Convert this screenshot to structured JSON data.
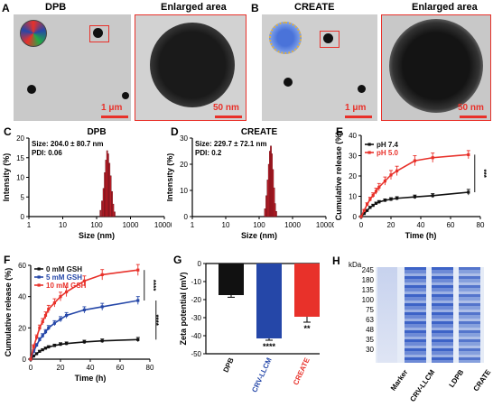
{
  "panels": {
    "A": {
      "letter": "A",
      "left_title": "DPB",
      "right_title": "Enlarged area",
      "scale_left": "1 μm",
      "scale_right": "50 nm"
    },
    "B": {
      "letter": "B",
      "left_title": "CREATE",
      "right_title": "Enlarged area",
      "scale_left": "1 μm",
      "scale_right": "50 nm"
    },
    "H": {
      "letter": "H"
    }
  },
  "colors": {
    "red": "#e8312a",
    "blue": "#2547a8",
    "black": "#111111",
    "gel_blue": "#3d63c7"
  },
  "chart_data": [
    {
      "id": "C",
      "type": "bar",
      "letter": "C",
      "title": "DPB",
      "xlabel": "Size (nm)",
      "ylabel": "Intensity (%)",
      "xscale": "log",
      "xlim": [
        1,
        10000
      ],
      "ylim": [
        0,
        25
      ],
      "xticks": [
        "1",
        "10",
        "100",
        "1000",
        "10000"
      ],
      "yticks": [
        "0",
        "5",
        "10",
        "15",
        "20"
      ],
      "annotations": [
        "Size: 204.0 ± 80.7 nm",
        "PDI: 0.06"
      ],
      "x": [
        130,
        145,
        160,
        175,
        190,
        205,
        220,
        240,
        260,
        285,
        310,
        340
      ],
      "values": [
        2,
        5,
        9,
        14,
        18,
        21,
        20,
        17,
        13,
        8,
        4,
        1.5
      ]
    },
    {
      "id": "D",
      "type": "bar",
      "letter": "D",
      "title": "CREATE",
      "xlabel": "Size (nm)",
      "ylabel": "Intensity (%)",
      "xscale": "log",
      "xlim": [
        1,
        10000
      ],
      "ylim": [
        0,
        30
      ],
      "xticks": [
        "1",
        "10",
        "100",
        "1000",
        "10000"
      ],
      "yticks": [
        "0",
        "10",
        "20",
        "30"
      ],
      "annotations": [
        "Size: 229.7 ± 72.1 nm",
        "PDI: 0.2"
      ],
      "x": [
        150,
        165,
        180,
        195,
        210,
        225,
        240,
        260,
        280,
        300,
        325
      ],
      "values": [
        3,
        8,
        14,
        20,
        25,
        27,
        24,
        18,
        11,
        5,
        2
      ]
    },
    {
      "id": "E",
      "type": "line",
      "letter": "E",
      "xlabel": "Time (h)",
      "ylabel": "Cumulative release (%)",
      "xlim": [
        0,
        80
      ],
      "ylim": [
        0,
        40
      ],
      "xticks": [
        "0",
        "20",
        "40",
        "60",
        "80"
      ],
      "yticks": [
        "0",
        "10",
        "20",
        "30",
        "40"
      ],
      "sig": "***",
      "series": [
        {
          "name": "pH 7.4",
          "color": "#111111",
          "x": [
            0,
            2,
            4,
            6,
            8,
            10,
            12,
            16,
            20,
            24,
            36,
            48,
            72
          ],
          "y": [
            0,
            1.5,
            3,
            4.5,
            5.5,
            6.5,
            7.2,
            8,
            8.5,
            9,
            9.7,
            10.3,
            12
          ],
          "err": [
            0,
            0.3,
            0.4,
            0.5,
            0.6,
            0.6,
            0.7,
            0.7,
            0.8,
            0.8,
            0.9,
            1.0,
            1.4
          ]
        },
        {
          "name": "pH 5.0",
          "color": "#e8312a",
          "x": [
            0,
            2,
            4,
            6,
            8,
            10,
            12,
            16,
            20,
            24,
            36,
            48,
            72
          ],
          "y": [
            0,
            3,
            6,
            8.5,
            10.5,
            12.5,
            14.5,
            17.5,
            20.5,
            22.5,
            27.5,
            29,
            30.5
          ],
          "err": [
            0,
            0.5,
            0.8,
            1,
            1.2,
            1.5,
            1.8,
            2,
            2.2,
            2.3,
            2.5,
            2.3,
            2
          ]
        }
      ]
    },
    {
      "id": "F",
      "type": "line",
      "letter": "F",
      "xlabel": "Time (h)",
      "ylabel": "Cumulative release (%)",
      "xlim": [
        0,
        80
      ],
      "ylim": [
        0,
        60
      ],
      "xticks": [
        "0",
        "20",
        "40",
        "60",
        "80"
      ],
      "yticks": [
        "0",
        "20",
        "40",
        "60"
      ],
      "sig": [
        "****",
        "****"
      ],
      "series": [
        {
          "name": "0 mM GSH",
          "color": "#111111",
          "x": [
            0,
            2,
            4,
            6,
            8,
            10,
            12,
            16,
            20,
            24,
            36,
            48,
            72
          ],
          "y": [
            0,
            2,
            3.5,
            5,
            6,
            7,
            7.8,
            8.7,
            9.5,
            10,
            11,
            11.7,
            12.5
          ],
          "err": [
            0,
            0.4,
            0.5,
            0.6,
            0.7,
            0.7,
            0.8,
            0.9,
            1,
            1,
            1.1,
            1.2,
            1.4
          ]
        },
        {
          "name": "5 mM GSH",
          "color": "#2547a8",
          "x": [
            0,
            2,
            4,
            6,
            8,
            10,
            12,
            16,
            20,
            24,
            36,
            48,
            72
          ],
          "y": [
            0,
            5,
            9,
            12.5,
            15,
            17.5,
            20,
            23,
            25.5,
            28,
            31.5,
            33.5,
            37.5
          ],
          "err": [
            0,
            0.8,
            1,
            1.2,
            1.3,
            1.4,
            1.5,
            1.6,
            1.7,
            1.8,
            2,
            2.2,
            2.5
          ]
        },
        {
          "name": "10 mM GSH",
          "color": "#e8312a",
          "x": [
            0,
            2,
            4,
            6,
            8,
            10,
            12,
            16,
            20,
            24,
            36,
            48,
            72
          ],
          "y": [
            0,
            8,
            14,
            20,
            24,
            28,
            32,
            36,
            40,
            43,
            50,
            54,
            57
          ],
          "err": [
            0,
            1.2,
            1.5,
            1.8,
            2,
            2.2,
            2.4,
            2.6,
            2.8,
            3,
            3.2,
            3.3,
            3.5
          ]
        }
      ]
    },
    {
      "id": "G",
      "type": "bar",
      "letter": "G",
      "ylabel": "Zeta potential (mV)",
      "ylim": [
        -50,
        0
      ],
      "yticks": [
        "0",
        "-10",
        "-20",
        "-30",
        "-40",
        "-50"
      ],
      "categories": [
        "DPB",
        "CRV-LLCM",
        "CREATE"
      ],
      "values": [
        -17.5,
        -41.5,
        -29.5
      ],
      "err": [
        1.2,
        1.0,
        3.0
      ],
      "colors": [
        "#111111",
        "#2547a8",
        "#e8312a"
      ],
      "sig": [
        "",
        "****",
        "**"
      ]
    }
  ],
  "gel": {
    "unit": "kDa",
    "markers": [
      "245",
      "180",
      "135",
      "100",
      "75",
      "63",
      "48",
      "35",
      "30"
    ],
    "lanes": [
      "Marker",
      "CRV-LLCM",
      "LDPB",
      "CRATE"
    ]
  }
}
